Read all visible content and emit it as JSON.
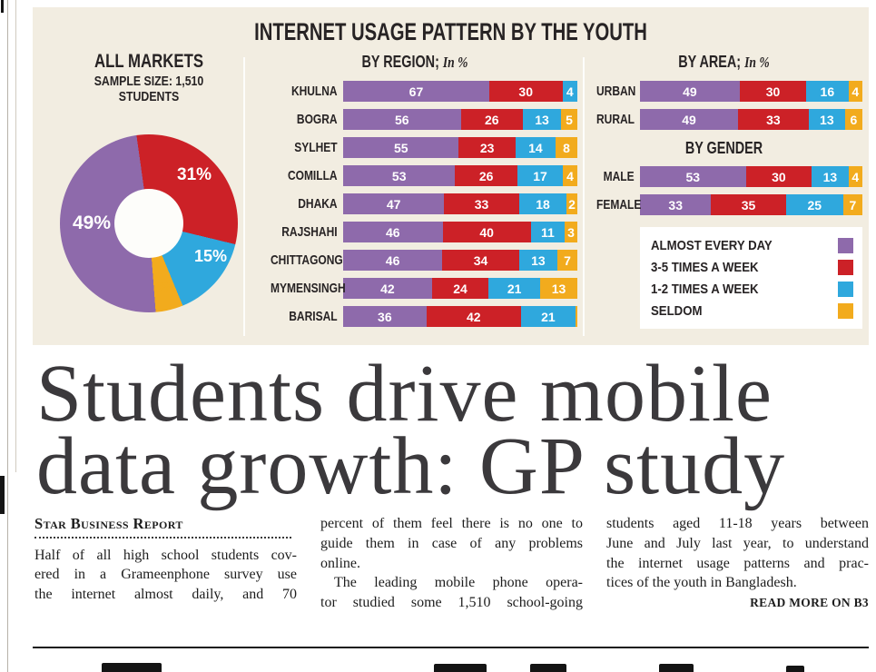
{
  "infographic": {
    "title": "INTERNET USAGE PATTERN BY THE YOUTH",
    "background_color": "#f2ede1",
    "legend": [
      {
        "label": "ALMOST EVERY DAY",
        "color": "#8e6aab"
      },
      {
        "label": "3-5 TIMES A WEEK",
        "color": "#cc2127"
      },
      {
        "label": "1-2 TIMES A WEEK",
        "color": "#2fa8dd"
      },
      {
        "label": "SELDOM",
        "color": "#f2ab1d"
      }
    ]
  },
  "chart_data": [
    {
      "type": "pie",
      "title": "ALL MARKETS",
      "subtitle_lines": [
        "SAMPLE SIZE: 1,510",
        "STUDENTS"
      ],
      "labels": [
        "ALMOST EVERY DAY",
        "3-5 TIMES A WEEK",
        "1-2 TIMES A WEEK",
        "SELDOM"
      ],
      "values": [
        49,
        31,
        15,
        5
      ],
      "value_labels": [
        "49%",
        "31%",
        "15%",
        "5%"
      ]
    },
    {
      "type": "bar",
      "variant": "horizontal-stacked",
      "title": "BY REGION;",
      "title_suffix": "In %",
      "categories": [
        "KHULNA",
        "BOGRA",
        "SYLHET",
        "COMILLA",
        "DHAKA",
        "RAJSHAHI",
        "CHITTAGONG",
        "MYMENSINGH",
        "BARISAL"
      ],
      "series": [
        {
          "name": "ALMOST EVERY DAY",
          "values": [
            67,
            56,
            55,
            53,
            47,
            46,
            46,
            42,
            36
          ]
        },
        {
          "name": "3-5 TIMES A WEEK",
          "values": [
            30,
            26,
            23,
            26,
            33,
            40,
            34,
            24,
            42
          ]
        },
        {
          "name": "1-2 TIMES A WEEK",
          "values": [
            4,
            13,
            14,
            17,
            18,
            11,
            13,
            21,
            21
          ]
        },
        {
          "name": "SELDOM",
          "values": [
            0,
            5,
            8,
            4,
            2,
            3,
            7,
            13,
            1
          ]
        }
      ],
      "xlim": [
        0,
        100
      ]
    },
    {
      "type": "bar",
      "variant": "horizontal-stacked",
      "title": "BY AREA;",
      "title_suffix": "In %",
      "categories": [
        "URBAN",
        "RURAL"
      ],
      "series": [
        {
          "name": "ALMOST EVERY DAY",
          "values": [
            49,
            49
          ]
        },
        {
          "name": "3-5 TIMES A WEEK",
          "values": [
            30,
            33
          ]
        },
        {
          "name": "1-2 TIMES A WEEK",
          "values": [
            16,
            13
          ]
        },
        {
          "name": "SELDOM",
          "values": [
            4,
            6
          ]
        }
      ],
      "xlim": [
        0,
        100
      ]
    },
    {
      "type": "bar",
      "variant": "horizontal-stacked",
      "title": "BY GENDER",
      "title_suffix": "",
      "categories": [
        "MALE",
        "FEMALE"
      ],
      "series": [
        {
          "name": "ALMOST EVERY DAY",
          "values": [
            53,
            33
          ]
        },
        {
          "name": "3-5 TIMES A WEEK",
          "values": [
            30,
            35
          ]
        },
        {
          "name": "1-2 TIMES A WEEK",
          "values": [
            13,
            25
          ]
        },
        {
          "name": "SELDOM",
          "values": [
            4,
            7
          ]
        }
      ],
      "xlim": [
        0,
        100
      ]
    }
  ],
  "headline": {
    "line1": "Students drive mobile",
    "line2": "data growth: GP study"
  },
  "article": {
    "byline": "Star Business Report",
    "read_more": "READ MORE ON B3",
    "columns": [
      {
        "paragraphs": [
          {
            "indent": false,
            "ends": false,
            "lines": [
              "Half of all high school students cov-",
              "ered in a Grameenphone survey use",
              "the internet almost daily, and 70"
            ]
          }
        ]
      },
      {
        "paragraphs": [
          {
            "indent": false,
            "ends": true,
            "lines": [
              "percent of them feel there is no one to",
              "guide them in case of any problems",
              "online."
            ]
          },
          {
            "indent": true,
            "ends": false,
            "lines": [
              "The leading mobile phone opera-",
              "tor studied some 1,510 school-going"
            ]
          }
        ]
      },
      {
        "paragraphs": [
          {
            "indent": false,
            "ends": true,
            "lines": [
              "students aged 11-18 years between",
              "June and July last year, to understand",
              "the internet usage patterns and prac-",
              "tices of the youth in Bangladesh."
            ]
          }
        ]
      }
    ]
  }
}
